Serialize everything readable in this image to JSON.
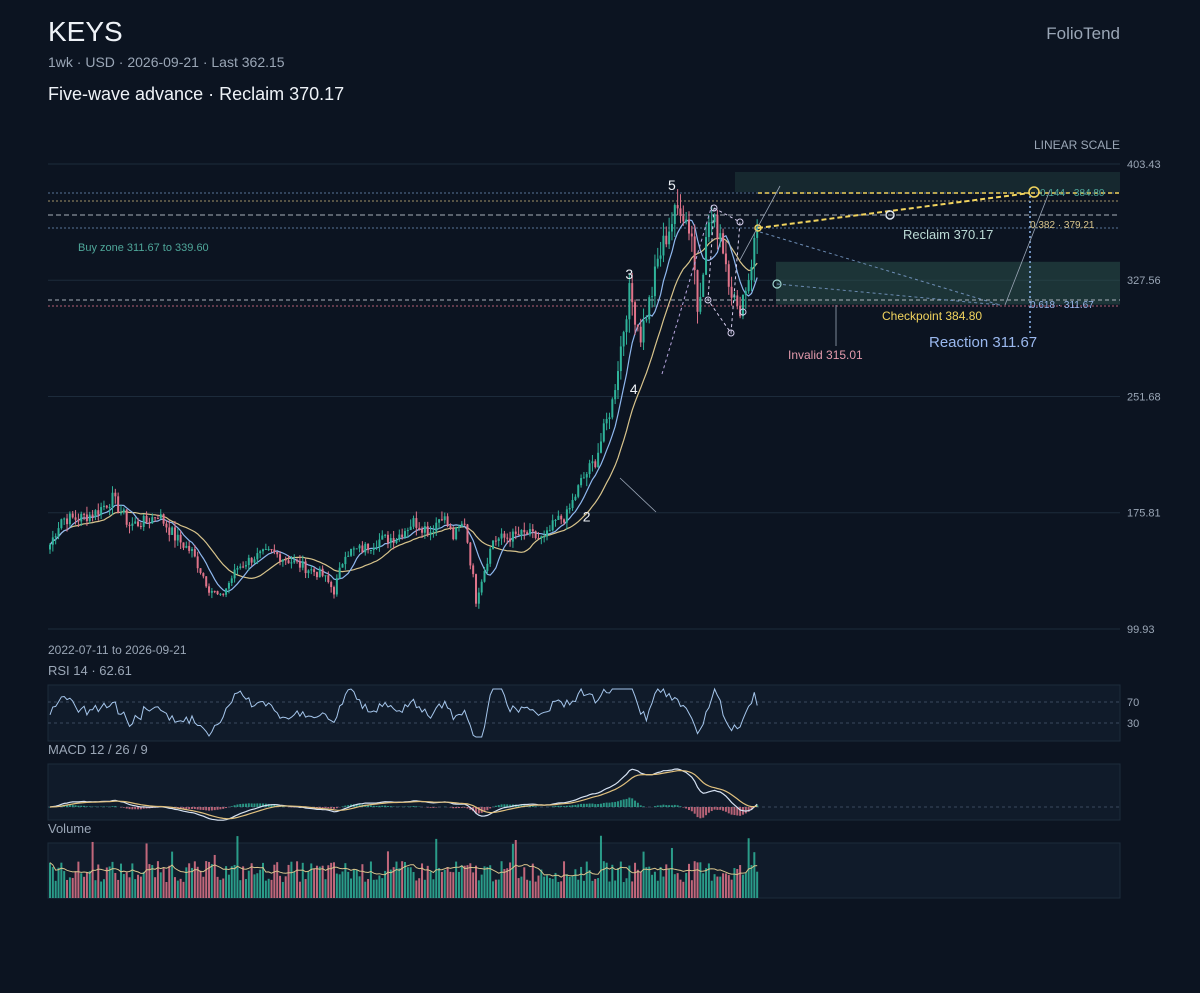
{
  "header": {
    "ticker": "KEYS",
    "subline": "1wk · USD · 2026-09-21 · Last 362.15",
    "headline": "Five-wave advance · Reclaim 370.17",
    "brand": "FolioTend",
    "scale": "LINEAR SCALE",
    "range": "2022-07-11 to 2026-09-21"
  },
  "panels": {
    "rsi_title": "RSI 14 · 62.61",
    "macd_title": "MACD 12 / 26 / 9",
    "volume_title": "Volume"
  },
  "colors": {
    "background": "#0c1421",
    "up": "#2fb39a",
    "down": "#e0748a",
    "ma_fast": "#8fb8ef",
    "ma_slow": "#d8c48c",
    "accent": "#f2d45e",
    "zone": "#2a4e4b",
    "rsi": "#a5c6ec",
    "macd": "#d6e2f3",
    "signal": "#e0c07e"
  },
  "chart_data": {
    "type": "candlestick",
    "interval": "1wk",
    "currency": "USD",
    "start": "2022-07-11",
    "end": "2026-09-21",
    "last": 362.15,
    "ylim": [
      99.93,
      403.43
    ],
    "y_ticks": [
      "403.43",
      "327.56",
      "251.68",
      "175.81",
      "99.93"
    ],
    "anchors": [
      [
        0,
        155
      ],
      [
        4,
        172
      ],
      [
        10,
        172
      ],
      [
        16,
        176
      ],
      [
        22,
        185
      ],
      [
        28,
        168
      ],
      [
        34,
        170
      ],
      [
        38,
        175
      ],
      [
        44,
        160
      ],
      [
        50,
        150
      ],
      [
        56,
        127
      ],
      [
        60,
        120
      ],
      [
        66,
        140
      ],
      [
        72,
        147
      ],
      [
        78,
        150
      ],
      [
        84,
        145
      ],
      [
        90,
        140
      ],
      [
        96,
        135
      ],
      [
        100,
        125
      ],
      [
        104,
        150
      ],
      [
        110,
        152
      ],
      [
        116,
        158
      ],
      [
        122,
        160
      ],
      [
        128,
        170
      ],
      [
        134,
        164
      ],
      [
        138,
        175
      ],
      [
        142,
        160
      ],
      [
        146,
        170
      ],
      [
        150,
        120
      ],
      [
        156,
        158
      ],
      [
        162,
        160
      ],
      [
        168,
        162
      ],
      [
        174,
        158
      ],
      [
        178,
        170
      ],
      [
        182,
        174
      ],
      [
        187,
        196
      ],
      [
        192,
        210
      ],
      [
        198,
        248
      ],
      [
        204,
        320
      ],
      [
        208,
        292
      ],
      [
        212,
        320
      ],
      [
        214,
        340
      ],
      [
        218,
        362
      ],
      [
        222,
        377
      ],
      [
        226,
        358
      ],
      [
        228,
        310
      ],
      [
        232,
        366
      ],
      [
        236,
        360
      ],
      [
        238,
        340
      ],
      [
        242,
        305
      ],
      [
        246,
        330
      ],
      [
        249,
        362
      ]
    ],
    "waves": [
      {
        "label": "2",
        "week": 189,
        "price": 182
      },
      {
        "label": "3",
        "week": 204,
        "price": 322
      },
      {
        "label": "4",
        "week": 207,
        "price": 265
      },
      {
        "label": "5",
        "week": 219,
        "price": 380
      }
    ],
    "levels": [
      {
        "label": "Reclaim 370.17",
        "value": 370.17
      },
      {
        "label": "Checkpoint 384.80",
        "value": 384.8
      },
      {
        "label": "Invalid 315.01",
        "value": 315.01
      },
      {
        "label": "Reaction 311.67",
        "value": 311.67
      }
    ],
    "buy_zone": {
      "label": "Buy zone 311.67 to 339.60",
      "low": 311.67,
      "high": 339.6
    },
    "fib_labels": [
      "0.144 · 384.80",
      "0.382 · 379.21",
      "0.618 · 311.67"
    ],
    "rsi": {
      "period": 14,
      "last": 62.61,
      "levels": [
        "70",
        "30"
      ]
    },
    "macd": {
      "fast": 12,
      "slow": 26,
      "signal": 9
    }
  }
}
